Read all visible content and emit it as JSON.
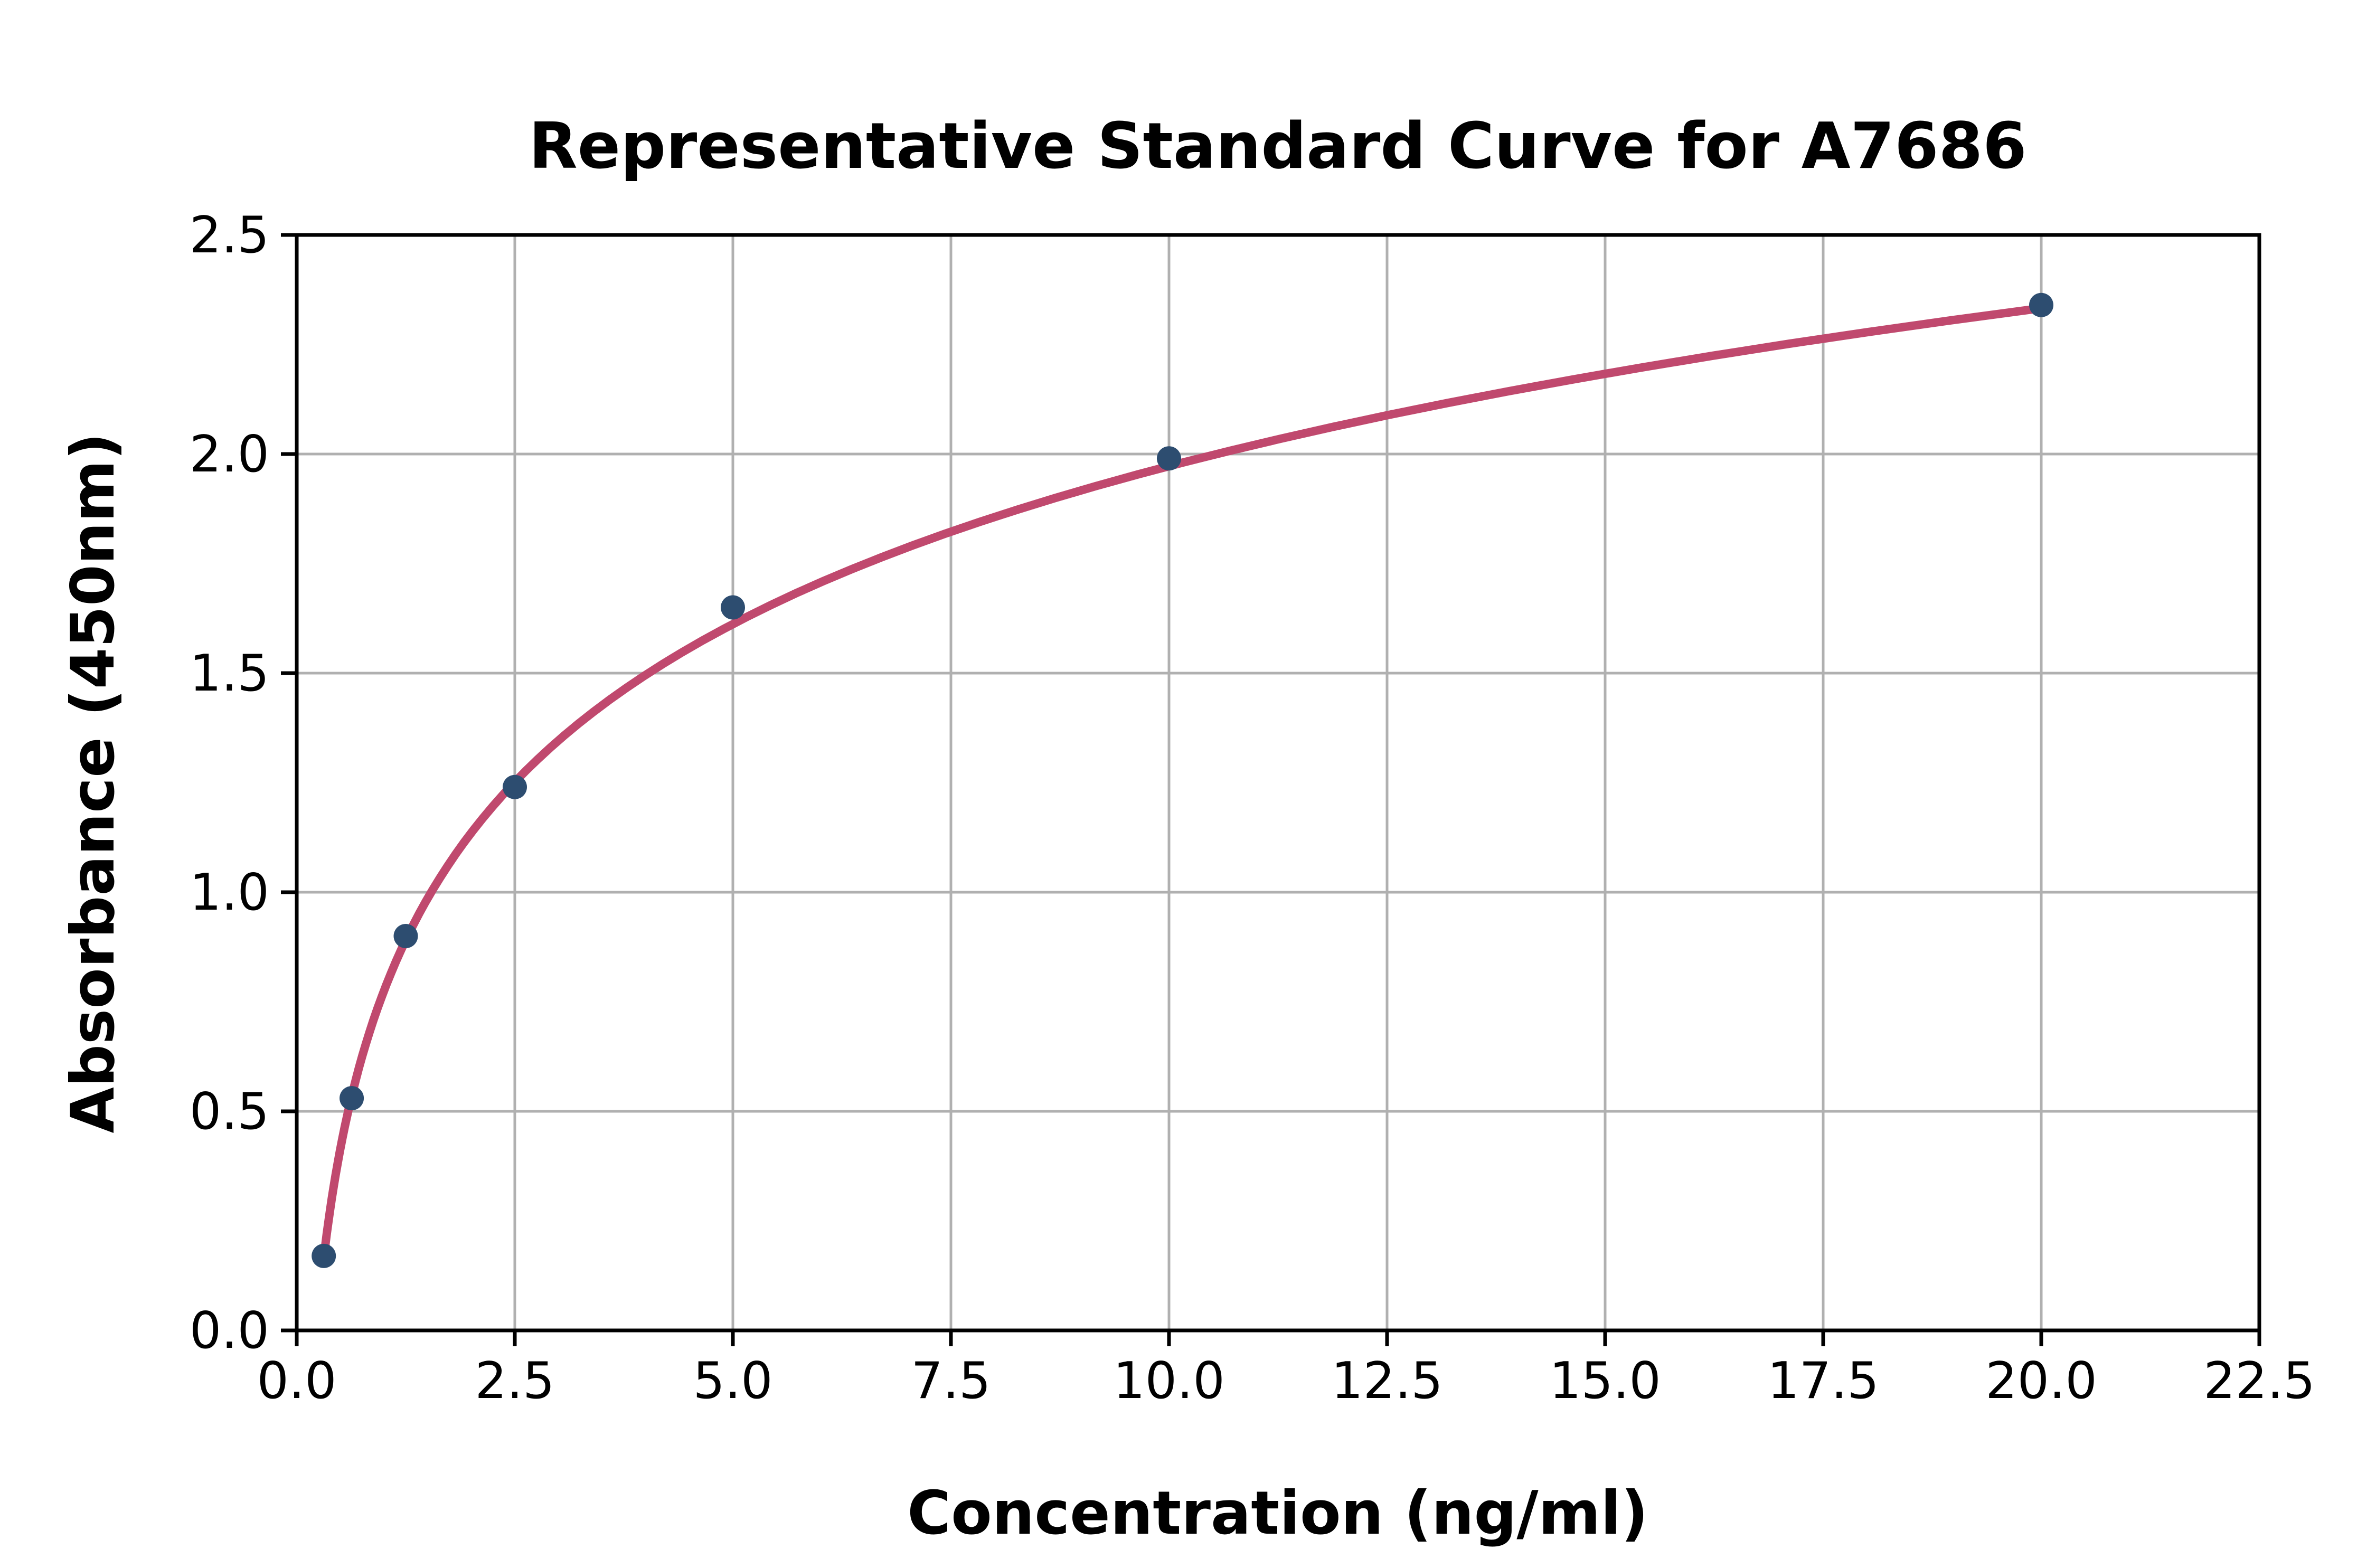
{
  "chart_data": {
    "type": "scatter",
    "title": "Representative Standard Curve for A7686",
    "xlabel": "Concentration (ng/ml)",
    "ylabel": "Absorbance (450nm)",
    "x": [
      0.31,
      0.63,
      1.25,
      2.5,
      5,
      10,
      20
    ],
    "y": [
      0.17,
      0.53,
      0.9,
      1.24,
      1.65,
      1.99,
      2.34
    ],
    "fit_curve": {
      "model": "y = a + b*ln(x)",
      "a": 0.775,
      "b": 0.52,
      "x_start": 0.31,
      "x_end": 20
    },
    "xlim": [
      0,
      22.5
    ],
    "ylim": [
      0,
      2.5
    ],
    "xticks": [
      "0.0",
      "2.5",
      "5.0",
      "7.5",
      "10.0",
      "12.5",
      "15.0",
      "17.5",
      "20.0",
      "22.5"
    ],
    "yticks": [
      "0.0",
      "0.5",
      "1.0",
      "1.5",
      "2.0",
      "2.5"
    ],
    "grid": true,
    "legend": null,
    "colors": {
      "curve": "#c0496e",
      "points": "#2d4d70",
      "grid": "#b0b0b0",
      "spine": "#000000",
      "background": "#ffffff"
    }
  }
}
